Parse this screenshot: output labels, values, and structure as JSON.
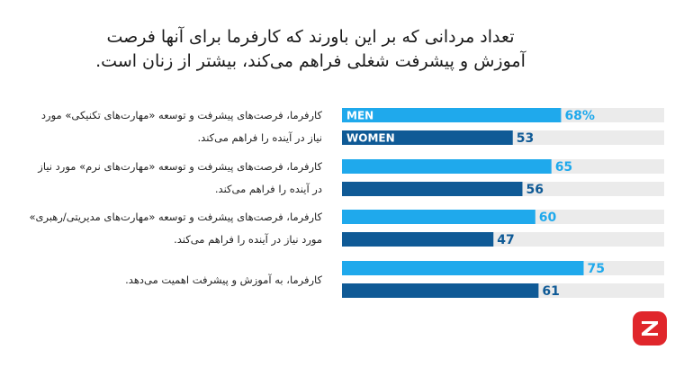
{
  "title_lines": [
    "تعداد مردانی که بر این باورند که کارفرما برای آنها فرصت",
    "آموزش و پیشرفت شغلی فراهم می‌کند، بیشتر از زنان است."
  ],
  "colors": {
    "men": "#1fa9ec",
    "women": "#0f5a96",
    "track": "#ebebeb",
    "logo": "#e0262b"
  },
  "logo_icon": "z-logo-icon",
  "chart_data": {
    "type": "bar",
    "orientation": "horizontal",
    "xlim": [
      0,
      100
    ],
    "categories": [
      {
        "lines": [
          "کارفرما، فرصت‌های پیشرفت و توسعه «مهارت‌های تکنیکی» مورد",
          "نیاز در آینده را فراهم می‌کند."
        ]
      },
      {
        "lines": [
          "کارفرما، فرصت‌های پیشرفت و توسعه «مهارت‌های نرم» مورد نیاز",
          "در آینده را فراهم می‌کند."
        ]
      },
      {
        "lines": [
          "کارفرما، فرصت‌های پیشرفت و توسعه «مهارت‌های مدیریتی/رهبری»",
          "مورد نیاز در آینده را فراهم می‌کند."
        ]
      },
      {
        "lines": [
          "کارفرما، به آموزش و پیشرفت اهمیت می‌دهد."
        ]
      }
    ],
    "series": [
      {
        "name": "MEN",
        "values": [
          68,
          65,
          60,
          75
        ],
        "value_labels": [
          "68%",
          "65",
          "60",
          "75"
        ]
      },
      {
        "name": "WOMEN",
        "values": [
          53,
          56,
          47,
          61
        ],
        "value_labels": [
          "53",
          "56",
          "47",
          "61"
        ]
      }
    ]
  }
}
